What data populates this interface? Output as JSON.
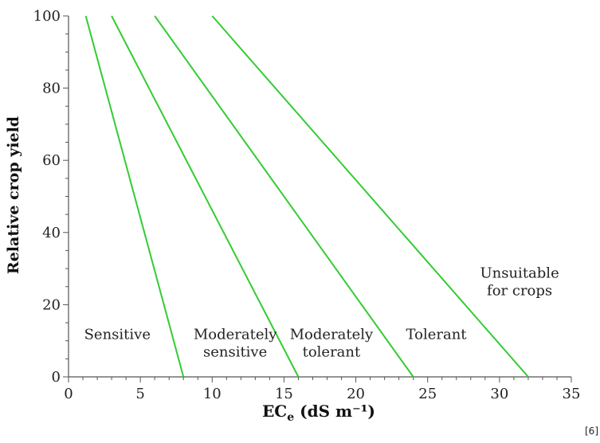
{
  "chart_data": {
    "type": "line",
    "xlabel": "EC",
    "xlabel_subscript": "e",
    "xlabel_units": " (dS m⁻¹)",
    "ylabel": "Relative crop yield",
    "xlim": [
      0,
      35
    ],
    "ylim": [
      0,
      100
    ],
    "x_ticks": [
      0,
      5,
      10,
      15,
      20,
      25,
      30,
      35
    ],
    "y_ticks": [
      0,
      20,
      40,
      60,
      80,
      100
    ],
    "line_color": "#33cc33",
    "series": [
      {
        "x": [
          1.2,
          8
        ],
        "y": [
          100,
          0
        ]
      },
      {
        "x": [
          3,
          16
        ],
        "y": [
          100,
          0
        ]
      },
      {
        "x": [
          6,
          24
        ],
        "y": [
          100,
          0
        ]
      },
      {
        "x": [
          10,
          32
        ],
        "y": [
          100,
          0
        ]
      }
    ],
    "region_labels": [
      {
        "lines": [
          "Sensitive"
        ],
        "x": 3.4,
        "y": 10.5
      },
      {
        "lines": [
          "Moderately",
          "sensitive"
        ],
        "x": 11.6,
        "y": 10.5
      },
      {
        "lines": [
          "Moderately",
          "tolerant"
        ],
        "x": 18.3,
        "y": 10.5
      },
      {
        "lines": [
          "Tolerant"
        ],
        "x": 25.6,
        "y": 10.5
      },
      {
        "lines": [
          "Unsuitable",
          "for crops"
        ],
        "x": 31.4,
        "y": 27.5
      }
    ]
  },
  "citation": "[6]"
}
